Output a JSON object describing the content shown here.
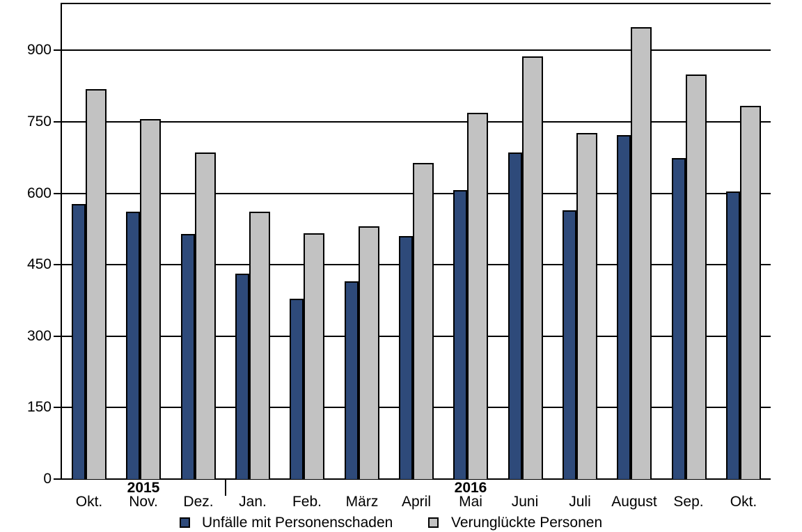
{
  "chart_data": {
    "type": "bar",
    "title": "",
    "xlabel": "",
    "ylabel": "",
    "categories": [
      "Okt.",
      "Nov.",
      "Dez.",
      "Jan.",
      "Feb.",
      "März",
      "April",
      "Mai",
      "Juni",
      "Juli",
      "August",
      "Sep.",
      "Okt."
    ],
    "series": [
      {
        "name": "Unfälle mit Personenschaden",
        "color": "#2e4a7a",
        "values": [
          578,
          562,
          514,
          432,
          379,
          415,
          510,
          607,
          686,
          564,
          722,
          674,
          604
        ]
      },
      {
        "name": "Verunglückte Personen",
        "color": "#c2c2c2",
        "values": [
          818,
          756,
          686,
          561,
          516,
          531,
          664,
          769,
          888,
          726,
          949,
          849,
          784
        ]
      }
    ],
    "ylim": [
      0,
      1000
    ],
    "yticks": [
      0,
      150,
      300,
      450,
      600,
      750,
      900
    ],
    "grid": true,
    "legend_position": "bottom",
    "year_labels": [
      {
        "text": "2015",
        "category_index": 1
      },
      {
        "text": "2016",
        "category_index": 7
      }
    ],
    "year_separator_after_index": 2
  },
  "legend": {
    "items": [
      {
        "label": "Unfälle mit Personenschaden",
        "color": "#2e4a7a"
      },
      {
        "label": "Verunglückte Personen",
        "color": "#c2c2c2"
      }
    ]
  }
}
